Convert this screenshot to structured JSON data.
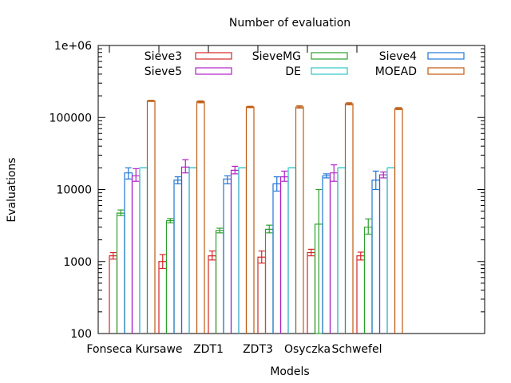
{
  "chart_data": {
    "type": "bar",
    "title": "Number of evaluation",
    "xlabel": "Models",
    "ylabel": "Evaluations",
    "yscale": "log",
    "ylim": [
      100,
      1000000
    ],
    "yticks": [
      "100",
      "1000",
      "10000",
      "100000",
      "1e+06"
    ],
    "error_bars": true,
    "legend_position": "top",
    "grid": false,
    "categories": [
      "Fonseca",
      "Kursawe",
      "ZDT1",
      "ZDT3",
      "Osyczka",
      "Schwefel"
    ],
    "series": [
      {
        "name": "Sieve3",
        "color": "#d62728",
        "values": [
          1200,
          1000,
          1200,
          1150,
          1330,
          1200
        ],
        "err_low": [
          1080,
          800,
          1050,
          950,
          1200,
          1050
        ],
        "err_high": [
          1330,
          1250,
          1400,
          1400,
          1480,
          1350
        ]
      },
      {
        "name": "SieveMG",
        "color": "#2ca02c",
        "values": [
          4700,
          3700,
          2700,
          2800,
          3300,
          3000
        ],
        "err_low": [
          4350,
          3450,
          2500,
          2500,
          100,
          2400
        ],
        "err_high": [
          5200,
          3950,
          2900,
          3200,
          10000,
          3900
        ]
      },
      {
        "name": "Sieve4",
        "color": "#1f77d4",
        "values": [
          17000,
          13500,
          14000,
          12000,
          15500,
          13500
        ],
        "err_low": [
          14000,
          12000,
          12000,
          9500,
          14500,
          10000
        ],
        "err_high": [
          20000,
          15000,
          15500,
          15000,
          16500,
          18000
        ]
      },
      {
        "name": "Sieve5",
        "color": "#b020c8",
        "values": [
          15500,
          20500,
          18500,
          15000,
          17000,
          16000
        ],
        "err_low": [
          13000,
          17000,
          16500,
          13000,
          13000,
          14500
        ],
        "err_high": [
          19500,
          26000,
          21000,
          18000,
          22000,
          17500
        ]
      },
      {
        "name": "DE",
        "color": "#2ec4c4",
        "values": [
          20000,
          20000,
          20000,
          20000,
          20000,
          20000
        ],
        "err_low": [
          20000,
          20000,
          20000,
          20000,
          20000,
          20000
        ],
        "err_high": [
          20000,
          20000,
          20000,
          20000,
          20000,
          20000
        ]
      },
      {
        "name": "MOEAD",
        "color": "#c05a10",
        "values": [
          170000,
          165000,
          140000,
          140000,
          155000,
          133000
        ],
        "err_low": [
          167000,
          160000,
          137000,
          135000,
          150000,
          129000
        ],
        "err_high": [
          173000,
          170000,
          143000,
          145000,
          160000,
          137000
        ]
      }
    ]
  }
}
